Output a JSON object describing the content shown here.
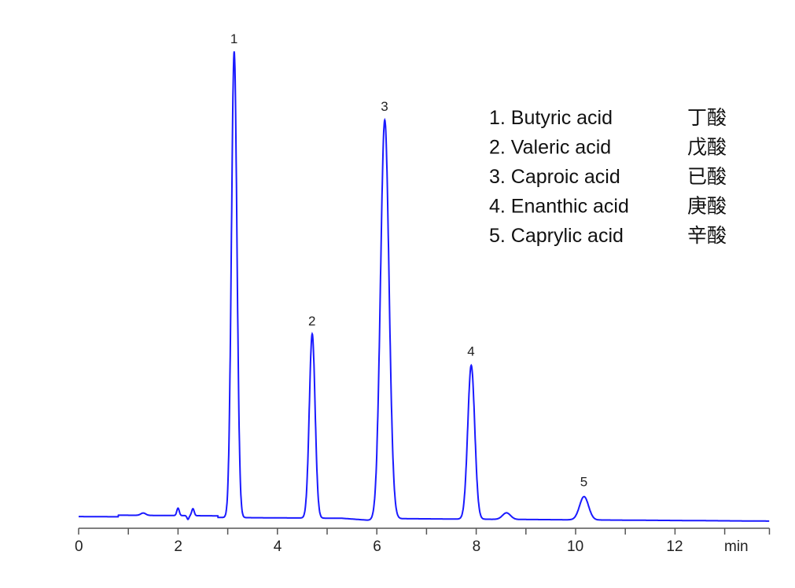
{
  "chart_data": {
    "type": "line",
    "title": "",
    "xlabel": "min",
    "ylabel": "",
    "xlim": [
      0,
      13.9
    ],
    "ylim": [
      -2,
      100
    ],
    "x_ticks": [
      0,
      2,
      4,
      6,
      8,
      10,
      12
    ],
    "x_tick_labels": [
      "0",
      "2",
      "4",
      "6",
      "8",
      "10",
      "12"
    ],
    "y_axis_shown": false,
    "grid": false,
    "line_color": "#1a1aff",
    "legend_placement": "top-right",
    "peaks": [
      {
        "label": "1",
        "retention_time": 3.13,
        "height": 100,
        "sigma": 0.055
      },
      {
        "label": "2",
        "retention_time": 4.7,
        "height": 39.5,
        "sigma": 0.058
      },
      {
        "label": "3",
        "retention_time": 6.16,
        "height": 85.5,
        "sigma": 0.085
      },
      {
        "label": "4",
        "retention_time": 7.9,
        "height": 33,
        "sigma": 0.07
      },
      {
        "label": "5",
        "retention_time": 10.17,
        "height": 5.0,
        "sigma": 0.09
      }
    ],
    "minor_peaks": [
      {
        "retention_time": 1.3,
        "height": 0.5,
        "sigma": 0.05
      },
      {
        "retention_time": 2.0,
        "height": 1.6,
        "sigma": 0.025
      },
      {
        "retention_time": 2.3,
        "height": 1.5,
        "sigma": 0.025
      },
      {
        "retention_time": 8.61,
        "height": 1.4,
        "sigma": 0.08
      }
    ],
    "legend": [
      {
        "english": "1. Butyric acid",
        "chinese": "丁酸"
      },
      {
        "english": "2. Valeric acid",
        "chinese": "戊酸"
      },
      {
        "english": "3. Caproic acid",
        "chinese": "已酸"
      },
      {
        "english": "4. Enanthic acid",
        "chinese": "庚酸"
      },
      {
        "english": "5. Caprylic acid",
        "chinese": "辛酸"
      }
    ]
  }
}
